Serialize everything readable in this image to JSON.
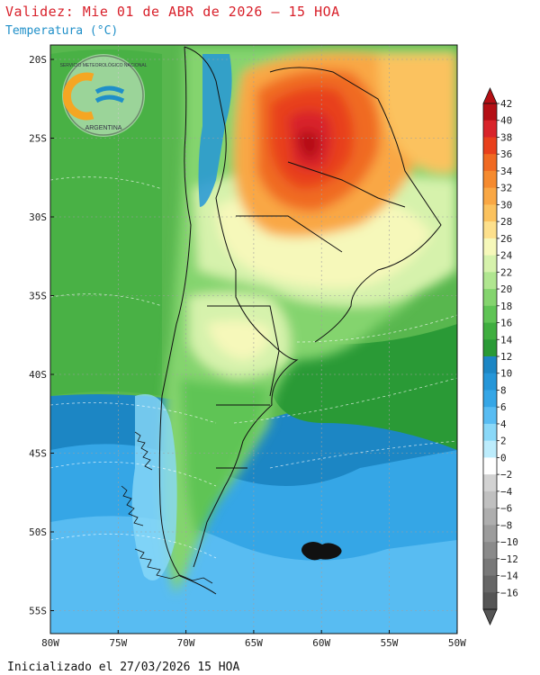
{
  "header": {
    "title": "Validez: Mie 01 de ABR de 2026 — 15 HOA",
    "subtitle": "Temperatura (°C)"
  },
  "footer": {
    "init": "Inicializado el 27/03/2026 15 HOA"
  },
  "logo": {
    "top_text": "SERVICIO METEOROLÓGICO NACIONAL",
    "bottom_text": "ARGENTINA"
  },
  "map": {
    "lat_labels": [
      "20S",
      "25S",
      "30S",
      "35S",
      "40S",
      "45S",
      "50S",
      "55S"
    ],
    "lon_labels": [
      "80W",
      "75W",
      "70W",
      "65W",
      "60W",
      "55W",
      "50W"
    ]
  },
  "colorbar": {
    "labels": [
      "42",
      "40",
      "38",
      "36",
      "34",
      "32",
      "30",
      "28",
      "26",
      "24",
      "22",
      "20",
      "18",
      "16",
      "14",
      "12",
      "10",
      "8",
      "6",
      "4",
      "2",
      "0",
      "−2",
      "−4",
      "−6",
      "−8",
      "−10",
      "−12",
      "−14",
      "−16"
    ],
    "colors": [
      "#b40f14",
      "#d8242a",
      "#e8401c",
      "#f06a22",
      "#f58a2e",
      "#f9a744",
      "#fbc25e",
      "#fde08c",
      "#f6f8ba",
      "#d6f2ac",
      "#b0e690",
      "#84d46e",
      "#5fc455",
      "#3fae3f",
      "#2a9a36",
      "#1c86c4",
      "#2596d8",
      "#35a6e6",
      "#58bcf2",
      "#8ad8f8",
      "#bcecfc",
      "#ffffff",
      "#d2d2d2",
      "#c0c0c0",
      "#aeaeae",
      "#9c9c9c",
      "#8a8a8a",
      "#787878",
      "#666666",
      "#555555"
    ]
  }
}
